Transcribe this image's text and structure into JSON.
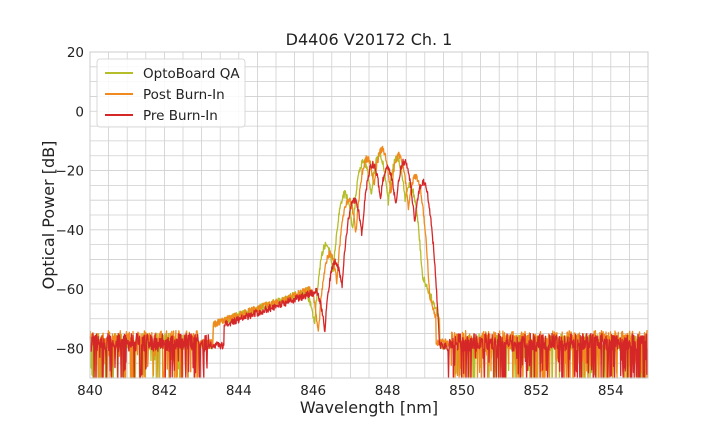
{
  "chart_data": {
    "type": "line",
    "title": "D4406 V20172 Ch. 1",
    "xlabel": "Wavelength [nm]",
    "ylabel": "Optical Power [dB]",
    "xlim": [
      840,
      855
    ],
    "ylim": [
      -90,
      20
    ],
    "xticks": [
      840,
      842,
      844,
      846,
      848,
      850,
      852,
      854
    ],
    "yticks": [
      20,
      0,
      -20,
      -40,
      -60,
      -80
    ],
    "grid": true,
    "legend_position": "top-left",
    "series": [
      {
        "name": "OptoBoard QA",
        "color": "#b5bd28",
        "noise_floor_dB": -77,
        "noise_range_nm": [
          840,
          855
        ],
        "edge_left_nm": 843.3,
        "edge_right_nm": 849.4,
        "peaks": [
          {
            "x": 845.85,
            "y": -63
          },
          {
            "x": 846.35,
            "y": -45
          },
          {
            "x": 846.85,
            "y": -28
          },
          {
            "x": 847.35,
            "y": -17
          },
          {
            "x": 847.78,
            "y": -15
          },
          {
            "x": 848.25,
            "y": -16
          },
          {
            "x": 848.6,
            "y": -25
          }
        ]
      },
      {
        "name": "Post Burn-In",
        "color": "#f08a1e",
        "noise_floor_dB": -76,
        "noise_range_nm": [
          840,
          855
        ],
        "edge_left_nm": 843.3,
        "edge_right_nm": 849.3,
        "peaks": [
          {
            "x": 845.9,
            "y": -60
          },
          {
            "x": 846.45,
            "y": -48
          },
          {
            "x": 846.95,
            "y": -30
          },
          {
            "x": 847.45,
            "y": -16
          },
          {
            "x": 847.85,
            "y": -13
          },
          {
            "x": 848.3,
            "y": -15
          },
          {
            "x": 848.75,
            "y": -22
          }
        ]
      },
      {
        "name": "Pre Burn-In",
        "color": "#d62728",
        "noise_floor_dB": -77,
        "noise_range_nm": [
          840,
          855
        ],
        "edge_left_nm": 843.6,
        "edge_right_nm": 849.2,
        "peaks": [
          {
            "x": 846.1,
            "y": -62
          },
          {
            "x": 846.6,
            "y": -51
          },
          {
            "x": 847.1,
            "y": -30
          },
          {
            "x": 847.6,
            "y": -18
          },
          {
            "x": 848.0,
            "y": -19
          },
          {
            "x": 848.45,
            "y": -17
          },
          {
            "x": 848.95,
            "y": -24
          }
        ]
      }
    ]
  }
}
